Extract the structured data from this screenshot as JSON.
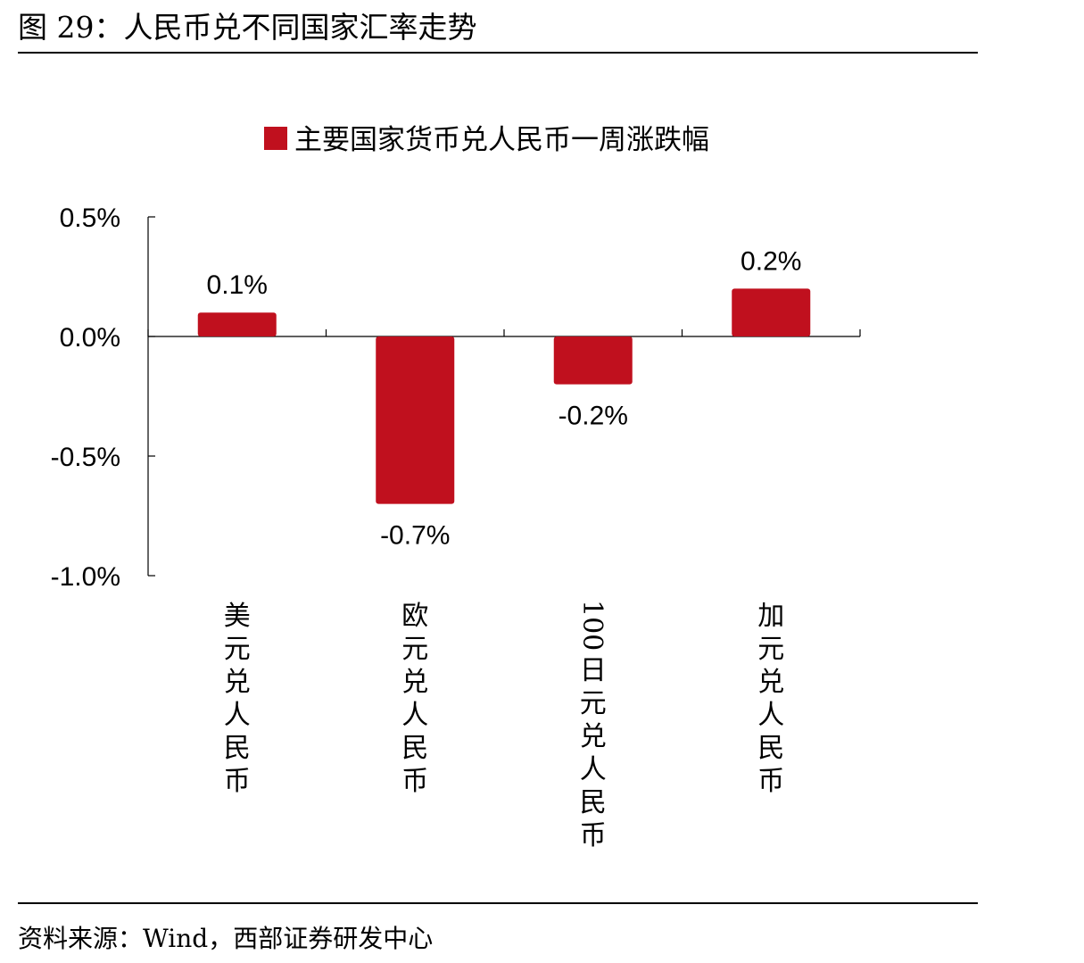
{
  "figure": {
    "title": "图 29：人民币兑不同国家汇率走势",
    "source": "资料来源：Wind，西部证券研发中心"
  },
  "colors": {
    "bar": "#C0101E",
    "axis": "#000000"
  },
  "chart_data": {
    "type": "bar",
    "categories": [
      "美元兑人民币",
      "欧元兑人民币",
      "100日元兑人民币",
      "加元兑人民币"
    ],
    "series": [
      {
        "name": "主要国家货币兑人民币一周涨跌幅",
        "values": [
          0.1,
          -0.7,
          -0.2,
          0.2
        ]
      }
    ],
    "data_labels": [
      "0.1%",
      "-0.7%",
      "-0.2%",
      "0.2%"
    ],
    "ylim": [
      -1.0,
      0.5
    ],
    "yticks": [
      0.5,
      0.0,
      -0.5,
      -1.0
    ],
    "ytick_labels": [
      "0.5%",
      "0.0%",
      "-0.5%",
      "-1.0%"
    ],
    "legend_position": "top-center",
    "grid": false
  }
}
